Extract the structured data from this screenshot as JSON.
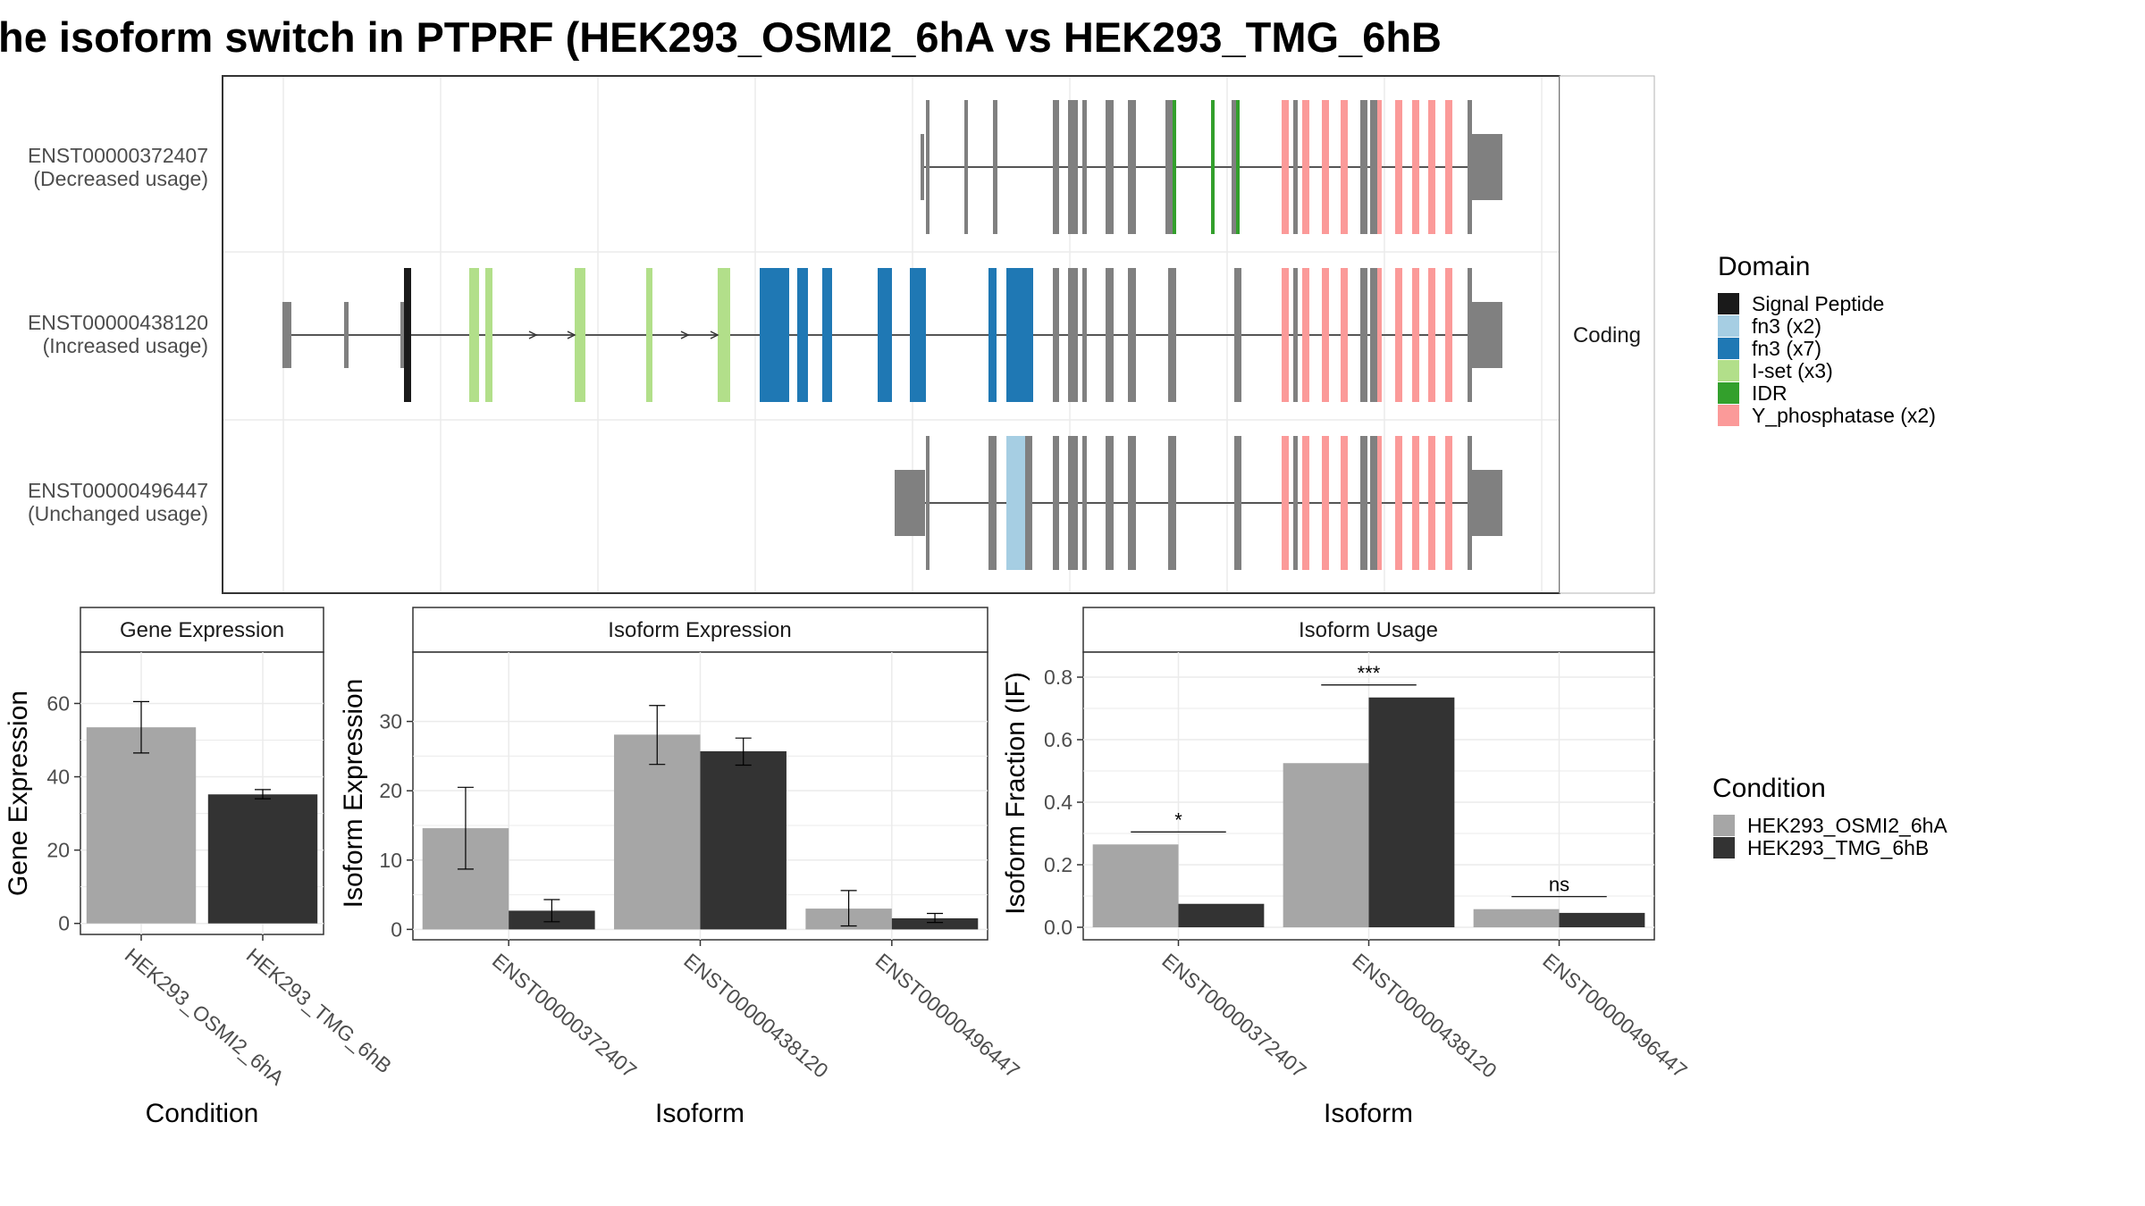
{
  "title": "he isoform switch in PTPRF (HEK293_OSMI2_6hA vs HEK293_TMG_6hB",
  "colors": {
    "condition_a": "#a6a6a6",
    "condition_b": "#333333",
    "exon": "#808080",
    "grid": "#ebebeb"
  },
  "chart_data": [
    {
      "type": "gene-structure",
      "strip": "Coding",
      "isoforms": [
        {
          "id": "ENST00000372407",
          "usage": "(Decreased usage)"
        },
        {
          "id": "ENST00000438120",
          "usage": "(Increased usage)"
        },
        {
          "id": "ENST00000496447",
          "usage": "(Unchanged usage)"
        }
      ],
      "legend": {
        "title": "Domain",
        "items": [
          {
            "label": "Signal Peptide",
            "color": "#1a1a1a"
          },
          {
            "label": "fn3 (x2)",
            "color": "#a6cee3"
          },
          {
            "label": "fn3 (x7)",
            "color": "#1f78b4"
          },
          {
            "label": "I-set (x3)",
            "color": "#b2df8a"
          },
          {
            "label": "IDR",
            "color": "#33a02c"
          },
          {
            "label": "Y_phosphatase (x2)",
            "color": "#fb9a99"
          }
        ]
      }
    },
    {
      "type": "bar",
      "strip": "Gene Expression",
      "xlabel": "Condition",
      "ylabel": "Gene Expression",
      "categories": [
        "HEK293_OSMI2_6hA",
        "HEK293_TMG_6hB"
      ],
      "values": [
        53.5,
        35.2
      ],
      "err_low": [
        46.5,
        34.0
      ],
      "err_high": [
        60.5,
        36.5
      ],
      "ylim": [
        -3,
        74
      ],
      "yticks": [
        0,
        20,
        40,
        60
      ]
    },
    {
      "type": "bar",
      "strip": "Isoform Expression",
      "xlabel": "Isoform",
      "ylabel": "Isoform Expression",
      "categories": [
        "ENST00000372407",
        "ENST00000438120",
        "ENST00000496447"
      ],
      "series": [
        {
          "values": [
            14.6,
            28.1,
            3.0
          ],
          "err_low": [
            8.7,
            23.8,
            0.5
          ],
          "err_high": [
            20.5,
            32.3,
            5.6
          ]
        },
        {
          "values": [
            2.7,
            25.7,
            1.6
          ],
          "err_low": [
            1.1,
            23.7,
            1.0
          ],
          "err_high": [
            4.3,
            27.6,
            2.3
          ]
        }
      ],
      "ylim": [
        -1.5,
        40
      ],
      "yticks": [
        0,
        10,
        20,
        30
      ]
    },
    {
      "type": "bar",
      "strip": "Isoform Usage",
      "xlabel": "Isoform",
      "ylabel": "Isoform Fraction (IF)",
      "categories": [
        "ENST00000372407",
        "ENST00000438120",
        "ENST00000496447"
      ],
      "series": [
        {
          "values": [
            0.265,
            0.525,
            0.058
          ]
        },
        {
          "values": [
            0.075,
            0.735,
            0.046
          ]
        }
      ],
      "significance": [
        "*",
        "***",
        "ns"
      ],
      "ylim": [
        -0.04,
        0.88
      ],
      "yticks": [
        "0.0",
        "0.2",
        "0.4",
        "0.6",
        "0.8"
      ]
    }
  ],
  "condition_legend": {
    "title": "Condition",
    "items": [
      "HEK293_OSMI2_6hA",
      "HEK293_TMG_6hB"
    ]
  }
}
